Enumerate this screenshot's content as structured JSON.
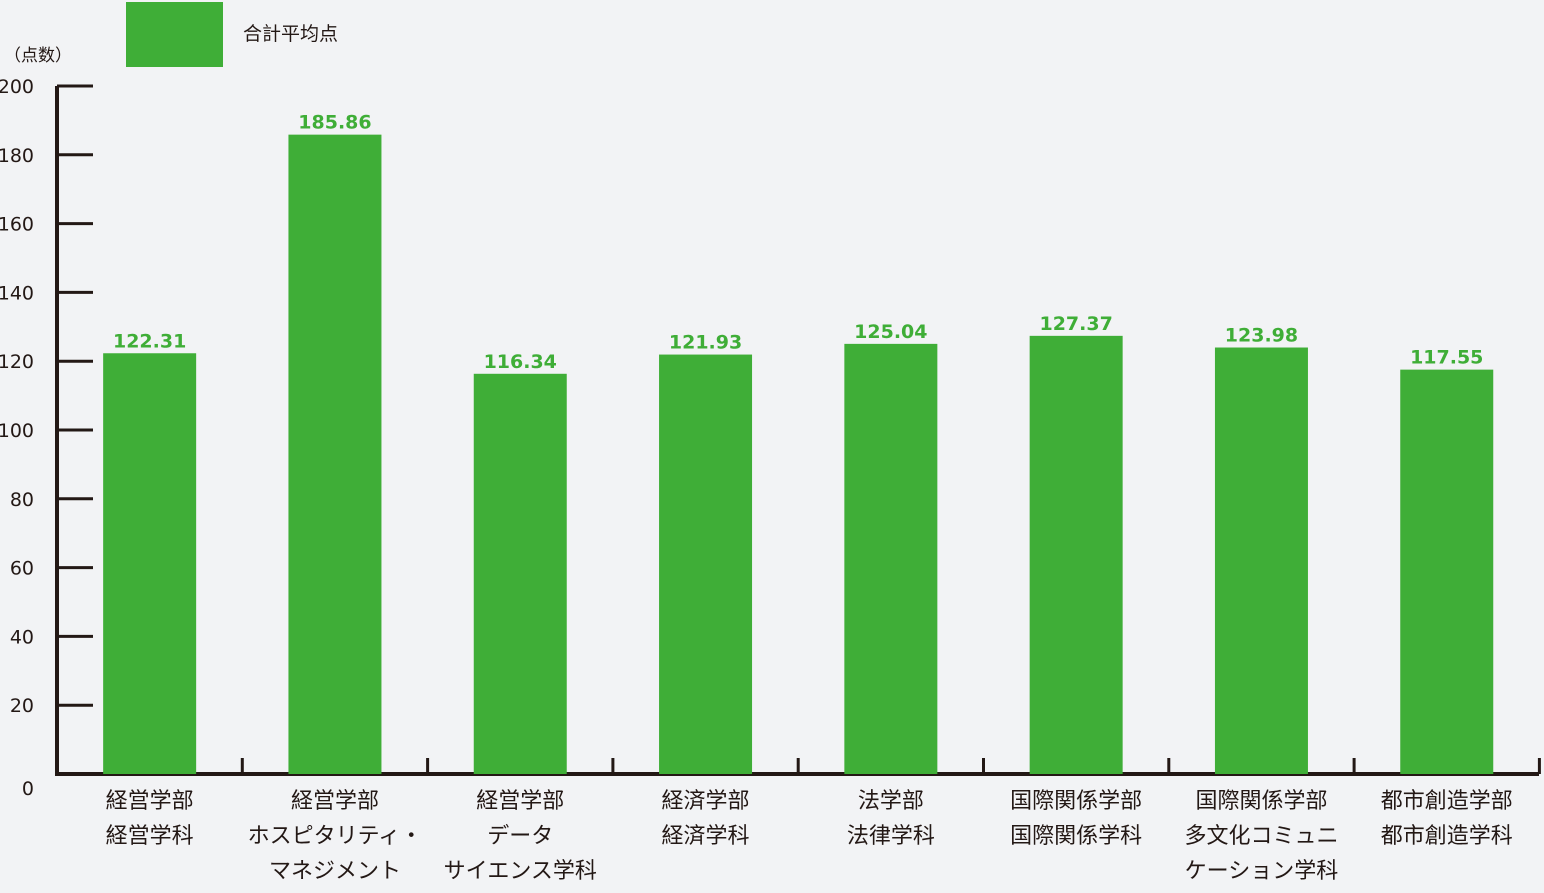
{
  "chart_data": {
    "type": "bar",
    "ylabel": "（点数）",
    "ylim": [
      0,
      200
    ],
    "yticks": [
      0,
      20,
      40,
      60,
      80,
      100,
      120,
      140,
      160,
      180,
      200
    ],
    "legend_position": "top",
    "grid": false,
    "categories": [
      [
        "経営学部",
        "経営学科"
      ],
      [
        "経営学部",
        "ホスピタリティ・",
        "マネジメント"
      ],
      [
        "経営学部",
        "データ",
        "サイエンス学科"
      ],
      [
        "経済学部",
        "経済学科"
      ],
      [
        "法学部",
        "法律学科"
      ],
      [
        "国際関係学部",
        "国際関係学科"
      ],
      [
        "国際関係学部",
        "多文化コミュニ",
        "ケーション学科"
      ],
      [
        "都市創造学部",
        "都市創造学科"
      ]
    ],
    "series": [
      {
        "name": "合計平均点",
        "color": "#3fae37",
        "values": [
          122.31,
          185.86,
          116.34,
          121.93,
          125.04,
          127.37,
          123.98,
          117.55
        ],
        "value_labels": [
          "122.31",
          "185.86",
          "116.34",
          "121.93",
          "125.04",
          "127.37",
          "123.98",
          "117.55"
        ]
      }
    ],
    "colors": {
      "bar": "#3fae37",
      "axis": "#231815",
      "text": "#231815",
      "background": "#f2f3f5"
    }
  }
}
